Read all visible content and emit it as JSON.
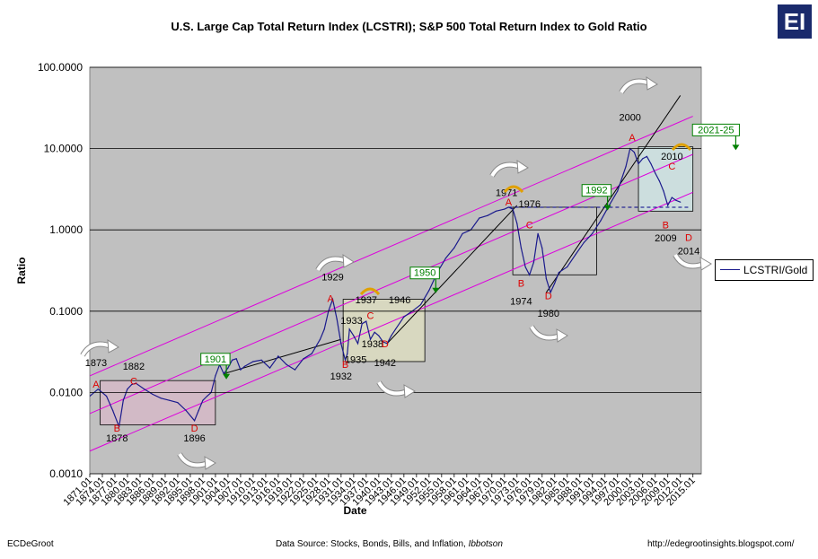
{
  "chart_data": {
    "type": "line",
    "title": "U.S. Large Cap Total Return Index (LCSTRI); S&P 500 Total Return Index to Gold Ratio",
    "xlabel": "Date",
    "ylabel": "Ratio",
    "y_scale": "log",
    "ylim": [
      0.001,
      100
    ],
    "xlim": [
      1871.01,
      2017
    ],
    "yticks": [
      "0.0010",
      "0.0100",
      "0.1000",
      "1.0000",
      "10.0000",
      "100.0000"
    ],
    "xticks": [
      "1871.01",
      "1874.01",
      "1877.01",
      "1880.01",
      "1883.01",
      "1886.01",
      "1889.01",
      "1892.01",
      "1895.01",
      "1898.01",
      "1901.01",
      "1904.01",
      "1907.01",
      "1910.01",
      "1913.01",
      "1916.01",
      "1919.01",
      "1922.01",
      "1925.01",
      "1928.01",
      "1931.01",
      "1934.01",
      "1937.01",
      "1940.01",
      "1943.01",
      "1946.01",
      "1949.01",
      "1952.01",
      "1955.01",
      "1958.01",
      "1961.01",
      "1964.01",
      "1967.01",
      "1970.01",
      "1973.01",
      "1976.01",
      "1979.01",
      "1982.01",
      "1985.01",
      "1988.01",
      "1991.01",
      "1994.01",
      "1997.01",
      "2000.01",
      "2003.01",
      "2006.01",
      "2009.01",
      "2012.01",
      "2015.01"
    ],
    "grid": true,
    "legend": "right",
    "series": [
      {
        "name": "LCSTRI/Gold",
        "color": "#1a1a8c",
        "x": [
          1871,
          1873,
          1875,
          1876.5,
          1878,
          1879,
          1880,
          1881,
          1882,
          1884,
          1886,
          1888,
          1890,
          1892,
          1894,
          1896,
          1897,
          1898,
          1899,
          1900,
          1901,
          1902,
          1903,
          1904,
          1905,
          1906,
          1907,
          1908,
          1910,
          1912,
          1914,
          1916,
          1918,
          1920,
          1922,
          1924,
          1926,
          1927,
          1928,
          1929,
          1930,
          1931,
          1932,
          1932.5,
          1933,
          1934,
          1935,
          1936,
          1937,
          1938,
          1939,
          1940,
          1941,
          1942,
          1943,
          1944,
          1946,
          1948,
          1950,
          1952,
          1954,
          1956,
          1958,
          1960,
          1962,
          1964,
          1966,
          1968,
          1970,
          1971,
          1972,
          1973,
          1974,
          1975,
          1976,
          1977,
          1978,
          1979,
          1980,
          1981,
          1982,
          1983,
          1985,
          1987,
          1989,
          1991,
          1993,
          1995,
          1997,
          1999,
          2000,
          2001,
          2002,
          2003,
          2004,
          2005,
          2006,
          2007,
          2008,
          2009,
          2010,
          2011,
          2012
        ],
        "values": [
          0.009,
          0.011,
          0.009,
          0.006,
          0.0038,
          0.008,
          0.011,
          0.0125,
          0.013,
          0.011,
          0.0095,
          0.0085,
          0.008,
          0.0075,
          0.006,
          0.0045,
          0.006,
          0.008,
          0.009,
          0.01,
          0.016,
          0.022,
          0.017,
          0.02,
          0.025,
          0.026,
          0.019,
          0.021,
          0.024,
          0.025,
          0.02,
          0.028,
          0.022,
          0.019,
          0.026,
          0.03,
          0.045,
          0.06,
          0.1,
          0.14,
          0.08,
          0.04,
          0.025,
          0.03,
          0.06,
          0.05,
          0.04,
          0.07,
          0.075,
          0.045,
          0.055,
          0.05,
          0.042,
          0.04,
          0.05,
          0.06,
          0.085,
          0.1,
          0.12,
          0.18,
          0.3,
          0.45,
          0.6,
          0.9,
          1.0,
          1.4,
          1.5,
          1.7,
          1.8,
          1.9,
          1.8,
          1.2,
          0.6,
          0.35,
          0.28,
          0.4,
          0.9,
          0.6,
          0.25,
          0.17,
          0.22,
          0.3,
          0.35,
          0.5,
          0.7,
          0.9,
          1.3,
          2.0,
          3.0,
          6.0,
          10.0,
          9.0,
          6.5,
          7.5,
          8.0,
          6.5,
          5.0,
          4.0,
          3.0,
          2.0,
          2.5,
          2.3,
          2.2
        ]
      }
    ],
    "reference_lines": [
      {
        "name": "upper-channel",
        "color": "#dd00dd",
        "x": [
          1871,
          2015
        ],
        "values": [
          0.016,
          25
        ]
      },
      {
        "name": "middle-channel",
        "color": "#dd00dd",
        "x": [
          1871,
          2015
        ],
        "values": [
          0.0055,
          8.5
        ]
      },
      {
        "name": "lower-channel",
        "color": "#dd00dd",
        "x": [
          1871,
          2015
        ],
        "values": [
          0.0019,
          2.9
        ]
      },
      {
        "name": "rising-support",
        "color": "#000000",
        "x": [
          1903,
          1931
        ],
        "values": [
          0.017,
          0.045
        ]
      },
      {
        "name": "post-war-support",
        "color": "#000000",
        "x": [
          1942,
          1973
        ],
        "values": [
          0.04,
          2.0
        ]
      },
      {
        "name": "late-support",
        "color": "#000000",
        "x": [
          1980,
          2012
        ],
        "values": [
          0.17,
          45
        ]
      },
      {
        "name": "resistance-1992",
        "color": "#000088",
        "x": [
          1971,
          2014
        ],
        "values": [
          1.9,
          1.9
        ]
      }
    ],
    "boxes": [
      {
        "x": [
          1873.5,
          1901
        ],
        "y": [
          0.004,
          0.014
        ],
        "fill": "#d8b8c8"
      },
      {
        "x": [
          1931.5,
          1951
        ],
        "y": [
          0.024,
          0.14
        ],
        "fill": "#e0e0c0"
      },
      {
        "x": [
          1972,
          1992
        ],
        "y": [
          0.28,
          1.9
        ],
        "fill": "#c8c8c8"
      },
      {
        "x": [
          2002,
          2015
        ],
        "y": [
          1.7,
          10.5
        ],
        "fill": "#d0e8e8"
      }
    ],
    "annotations": [
      {
        "text": "1873",
        "x": 1872.5,
        "y": 0.021,
        "color": "#000000"
      },
      {
        "text": "1882",
        "x": 1881.5,
        "y": 0.019,
        "color": "#000000"
      },
      {
        "text": "A",
        "x": 1872.5,
        "y": 0.0115,
        "color": "#dd0000"
      },
      {
        "text": "C",
        "x": 1881.5,
        "y": 0.0125,
        "color": "#dd0000"
      },
      {
        "text": "B",
        "x": 1877.5,
        "y": 0.0033,
        "color": "#dd0000"
      },
      {
        "text": "1878",
        "x": 1877.5,
        "y": 0.0025,
        "color": "#000000"
      },
      {
        "text": "D",
        "x": 1896,
        "y": 0.0033,
        "color": "#dd0000"
      },
      {
        "text": "1896",
        "x": 1896,
        "y": 0.0025,
        "color": "#000000"
      },
      {
        "text": "1901",
        "x": 1901,
        "y": 0.0235,
        "color": "#000000",
        "box": true
      },
      {
        "text": "1929",
        "x": 1929,
        "y": 0.24,
        "color": "#000000"
      },
      {
        "text": "A",
        "x": 1928.5,
        "y": 0.13,
        "color": "#dd0000"
      },
      {
        "text": "1937",
        "x": 1937,
        "y": 0.125,
        "color": "#000000"
      },
      {
        "text": "1946",
        "x": 1945,
        "y": 0.125,
        "color": "#000000"
      },
      {
        "text": "1950",
        "x": 1951,
        "y": 0.27,
        "color": "#000000",
        "box": true
      },
      {
        "text": "1933",
        "x": 1933.5,
        "y": 0.07,
        "color": "#000000"
      },
      {
        "text": "C",
        "x": 1938,
        "y": 0.08,
        "color": "#dd0000"
      },
      {
        "text": "1938",
        "x": 1938.5,
        "y": 0.036,
        "color": "#000000"
      },
      {
        "text": "D",
        "x": 1941.5,
        "y": 0.036,
        "color": "#dd0000"
      },
      {
        "text": "1935",
        "x": 1934.5,
        "y": 0.023,
        "color": "#000000"
      },
      {
        "text": "B",
        "x": 1932,
        "y": 0.02,
        "color": "#dd0000"
      },
      {
        "text": "1942",
        "x": 1941.5,
        "y": 0.021,
        "color": "#000000"
      },
      {
        "text": "1932",
        "x": 1931,
        "y": 0.0145,
        "color": "#000000"
      },
      {
        "text": "1971",
        "x": 1970.5,
        "y": 2.6,
        "color": "#000000"
      },
      {
        "text": "A",
        "x": 1971,
        "y": 2.0,
        "color": "#dd0000"
      },
      {
        "text": "1976",
        "x": 1976,
        "y": 1.9,
        "color": "#000000"
      },
      {
        "text": "1992",
        "x": 1992,
        "y": 2.8,
        "color": "#000000",
        "box": true
      },
      {
        "text": "C",
        "x": 1976,
        "y": 1.05,
        "color": "#dd0000"
      },
      {
        "text": "B",
        "x": 1974,
        "y": 0.2,
        "color": "#dd0000"
      },
      {
        "text": "D",
        "x": 1980.5,
        "y": 0.14,
        "color": "#dd0000"
      },
      {
        "text": "1974",
        "x": 1974,
        "y": 0.12,
        "color": "#000000"
      },
      {
        "text": "1980",
        "x": 1980.5,
        "y": 0.085,
        "color": "#000000"
      },
      {
        "text": "2000",
        "x": 2000,
        "y": 22,
        "color": "#000000"
      },
      {
        "text": "A",
        "x": 2000.5,
        "y": 12.5,
        "color": "#dd0000"
      },
      {
        "text": "2021-25",
        "x": 2020.5,
        "y": 15.5,
        "color": "#000000",
        "box": true
      },
      {
        "text": "2010",
        "x": 2010,
        "y": 7.3,
        "color": "#000000"
      },
      {
        "text": "C",
        "x": 2010,
        "y": 5.5,
        "color": "#dd0000"
      },
      {
        "text": "B",
        "x": 2008.5,
        "y": 1.05,
        "color": "#dd0000"
      },
      {
        "text": "2009",
        "x": 2008.5,
        "y": 0.72,
        "color": "#000000"
      },
      {
        "text": "D",
        "x": 2014,
        "y": 0.73,
        "color": "#dd0000"
      },
      {
        "text": "2014",
        "x": 2014,
        "y": 0.5,
        "color": "#000000"
      }
    ]
  },
  "footer": {
    "left": "ECDeGroot",
    "source_prefix": "Data Source:  Stocks, Bonds, Bills, and Inflation, ",
    "source_italic": "Ibbotson",
    "right": "http://edegrootinsights.blogspot.com/"
  },
  "logo_text": "EI"
}
